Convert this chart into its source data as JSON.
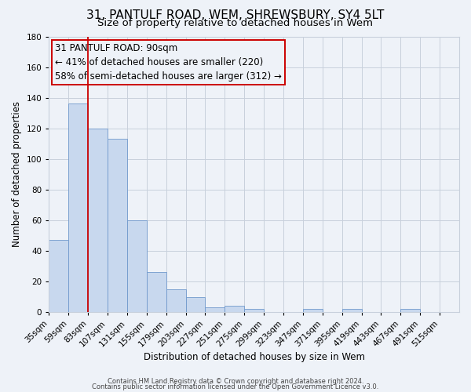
{
  "title": "31, PANTULF ROAD, WEM, SHREWSBURY, SY4 5LT",
  "subtitle": "Size of property relative to detached houses in Wem",
  "xlabel": "Distribution of detached houses by size in Wem",
  "ylabel": "Number of detached properties",
  "bin_labels": [
    "35sqm",
    "59sqm",
    "83sqm",
    "107sqm",
    "131sqm",
    "155sqm",
    "179sqm",
    "203sqm",
    "227sqm",
    "251sqm",
    "275sqm",
    "299sqm",
    "323sqm",
    "347sqm",
    "371sqm",
    "395sqm",
    "419sqm",
    "443sqm",
    "467sqm",
    "491sqm",
    "515sqm"
  ],
  "bar_heights": [
    47,
    136,
    120,
    113,
    60,
    26,
    15,
    10,
    3,
    4,
    2,
    0,
    0,
    2,
    0,
    2,
    0,
    0,
    2,
    0,
    0
  ],
  "bin_edges": [
    35,
    59,
    83,
    107,
    131,
    155,
    179,
    203,
    227,
    251,
    275,
    299,
    323,
    347,
    371,
    395,
    419,
    443,
    467,
    491,
    515,
    539
  ],
  "bar_color": "#c8d8ee",
  "bar_edge_color": "#7099cc",
  "vline_x": 83,
  "vline_color": "#cc0000",
  "ylim": [
    0,
    180
  ],
  "yticks": [
    0,
    20,
    40,
    60,
    80,
    100,
    120,
    140,
    160,
    180
  ],
  "annotation_text_line1": "31 PANTULF ROAD: 90sqm",
  "annotation_text_line2": "← 41% of detached houses are smaller (220)",
  "annotation_text_line3": "58% of semi-detached houses are larger (312) →",
  "annotation_box_color": "#cc0000",
  "footer1": "Contains HM Land Registry data © Crown copyright and database right 2024.",
  "footer2": "Contains public sector information licensed under the Open Government Licence v3.0.",
  "background_color": "#eef2f8",
  "grid_color": "#c8d0dc",
  "title_fontsize": 11,
  "subtitle_fontsize": 9.5,
  "axis_label_fontsize": 8.5,
  "tick_fontsize": 7.5,
  "annotation_fontsize": 8.5,
  "footer_fontsize": 6.0
}
